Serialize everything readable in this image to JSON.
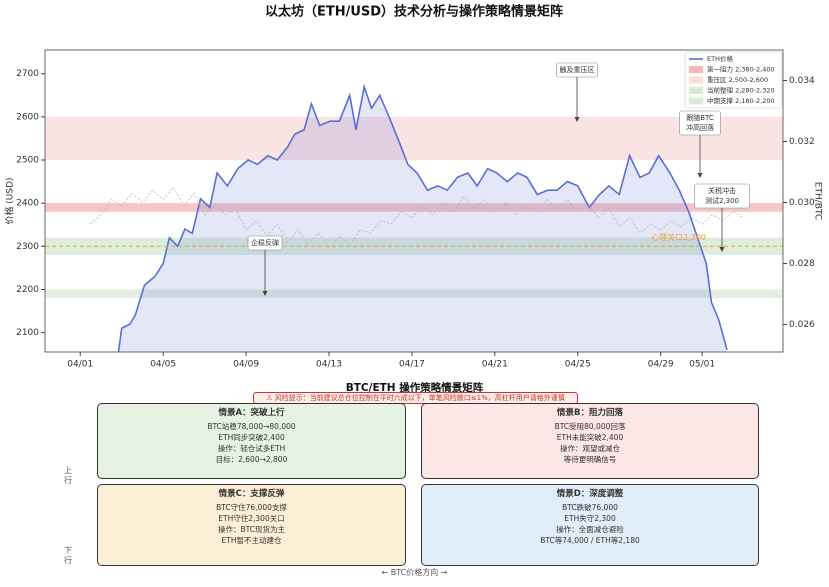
{
  "chart_data": {
    "type": "line",
    "title": "以太坊（ETH/USD）技术分析与操作策略情景矩阵",
    "y_label": "价格 (USD)",
    "y2_label": "ETH/BTC",
    "xlim": [
      -0.7,
      34.9
    ],
    "xticks": [
      {
        "value": 1,
        "label": "04/01"
      },
      {
        "value": 5,
        "label": "04/05"
      },
      {
        "value": 9,
        "label": "04/09"
      },
      {
        "value": 13,
        "label": "04/13"
      },
      {
        "value": 17,
        "label": "04/17"
      },
      {
        "value": 21,
        "label": "04/21"
      },
      {
        "value": 25,
        "label": "04/25"
      },
      {
        "value": 29,
        "label": "04/29"
      },
      {
        "value": 31,
        "label": "05/01"
      }
    ],
    "ylim": [
      2055,
      2755
    ],
    "yticks": [
      2100,
      2200,
      2300,
      2400,
      2500,
      2600,
      2700
    ],
    "y2lim": [
      0.0251,
      0.035
    ],
    "y2ticks": [
      0.026,
      0.028,
      {
        "value": 0.03,
        "label": "0.030"
      },
      0.032,
      0.034
    ],
    "series": [
      {
        "name": "ETH价格",
        "color": "#5a6fd3",
        "x": [
          2.83,
          3.0,
          3.4,
          3.65,
          4.1,
          4.6,
          5.0,
          5.3,
          5.7,
          6.05,
          6.4,
          6.8,
          7.25,
          7.6,
          8.1,
          8.6,
          9.1,
          9.55,
          10.05,
          10.5,
          11.0,
          11.35,
          11.8,
          12.15,
          12.55,
          13.05,
          13.5,
          14.0,
          14.3,
          14.7,
          15.05,
          15.45,
          15.9,
          16.4,
          16.8,
          17.25,
          17.75,
          18.25,
          18.7,
          19.2,
          19.7,
          20.15,
          20.65,
          21.1,
          21.6,
          22.1,
          22.55,
          23.05,
          23.55,
          24.0,
          24.5,
          25.0,
          25.55,
          26.05,
          26.5,
          27.0,
          27.5,
          28.0,
          28.45,
          28.9,
          29.45,
          29.9,
          30.35,
          30.85,
          31.2,
          31.45,
          31.8,
          32.2
        ],
        "values": [
          2050,
          2110,
          2120,
          2140,
          2210,
          2230,
          2260,
          2320,
          2300,
          2340,
          2330,
          2410,
          2390,
          2470,
          2440,
          2480,
          2500,
          2490,
          2510,
          2500,
          2530,
          2560,
          2570,
          2630,
          2580,
          2590,
          2590,
          2650,
          2570,
          2670,
          2620,
          2650,
          2600,
          2540,
          2490,
          2470,
          2430,
          2440,
          2430,
          2460,
          2470,
          2440,
          2480,
          2470,
          2450,
          2470,
          2460,
          2420,
          2430,
          2430,
          2450,
          2440,
          2390,
          2420,
          2440,
          2420,
          2510,
          2460,
          2470,
          2510,
          2470,
          2430,
          2380,
          2310,
          2260,
          2170,
          2130,
          2060
        ]
      },
      {
        "color": "#b5b5b5",
        "axis": "y2",
        "x": [
          1.5,
          2,
          2.5,
          3,
          3.5,
          4,
          4.5,
          5,
          5.5,
          6,
          6.5,
          7,
          7.5,
          8,
          8.5,
          9,
          9.5,
          10,
          10.5,
          11,
          11.5,
          12,
          12.5,
          13,
          13.5,
          14,
          14.5,
          15,
          15.5,
          16,
          16.5,
          17,
          17.5,
          18,
          18.5,
          19,
          19.5,
          20,
          20.5,
          21,
          21.5,
          22,
          22.5,
          23,
          23.5,
          24,
          24.5,
          25,
          25.5,
          26,
          26.5,
          27,
          27.5,
          28,
          28.5,
          29,
          29.5,
          30,
          30.5,
          31,
          31.5,
          32,
          32.5,
          33
        ],
        "values": [
          0.0293,
          0.0296,
          0.0301,
          0.0299,
          0.0303,
          0.03,
          0.0304,
          0.0301,
          0.0305,
          0.0299,
          0.0303,
          0.0296,
          0.0299,
          0.0296,
          0.0298,
          0.0291,
          0.0294,
          0.0289,
          0.0293,
          0.0287,
          0.0291,
          0.0286,
          0.029,
          0.0285,
          0.0289,
          0.0286,
          0.0291,
          0.029,
          0.0294,
          0.0293,
          0.0297,
          0.0295,
          0.0299,
          0.0296,
          0.03,
          0.0297,
          0.0302,
          0.0298,
          0.0301,
          0.0297,
          0.03,
          0.0296,
          0.0299,
          0.0297,
          0.0301,
          0.0298,
          0.0301,
          0.0297,
          0.0299,
          0.0295,
          0.0298,
          0.0292,
          0.0295,
          0.029,
          0.0293,
          0.0291,
          0.0294,
          0.0292,
          0.0295,
          0.0293,
          0.0296,
          0.0294,
          0.0297,
          0.0295
        ]
      }
    ],
    "bands": [
      {
        "name": "第一阻力 2,380-2,400",
        "range": [
          2380,
          2400
        ],
        "color": "#f5b7b9"
      },
      {
        "name": "重压区 2,500-2,600",
        "range": [
          2500,
          2600
        ],
        "color": "#f9dcdc"
      },
      {
        "name": "当前整理 2,280-2,320",
        "range": [
          2280,
          2320
        ],
        "color": "#d6ead2"
      },
      {
        "name": "中期支撑 2,180-2,200",
        "range": [
          2180,
          2200
        ],
        "color": "#dcebd8"
      }
    ],
    "reference_line": {
      "label": "心理关口2,300",
      "value": 2300,
      "color": "#f0a030"
    },
    "annotations": [
      {
        "text": [
          "触及重压区"
        ]
      },
      {
        "text": [
          "跟随BTC",
          "冲高回落"
        ]
      },
      {
        "text": [
          "关税冲击",
          "测试2,300"
        ]
      },
      {
        "text": [
          "企稳反弹"
        ]
      }
    ],
    "legend": "upper right"
  },
  "matrix": {
    "title": "BTC/ETH 操作策略情景矩阵",
    "warning": "⚠ 风险提示：当前建议总仓位控制在平时六成以下，单笔风险敞口≤1%，高杠杆用户请格外谨慎",
    "up_label": "上行",
    "down_label": "下行",
    "x_label": "← BTC价格方向 →",
    "scenarios": [
      {
        "title": "情景A：突破上行",
        "lines": [
          "BTC站稳78,000→80,000",
          "ETH同步突破2,400",
          "操作：轻仓试多ETH",
          "目标：2,600→2,800"
        ],
        "color": "#e6f2e2"
      },
      {
        "title": "情景B：阻力回落",
        "lines": [
          "BTC受阻80,000回落",
          "ETH未能突破2,400",
          "操作：观望或减仓",
          "等待更明确信号"
        ],
        "color": "#fde6e6"
      },
      {
        "title": "情景C：支撑反弹",
        "lines": [
          "BTC守住76,000支撑",
          "ETH守住2,300关口",
          "操作：BTC现货为主",
          "ETH暂不主动建仓"
        ],
        "color": "#fdeed6"
      },
      {
        "title": "情景D：深度调整",
        "lines": [
          "BTC跌破76,000",
          "ETH失守2,300",
          "操作：全面减仓避险",
          "BTC等74,000 / ETH等2,180"
        ],
        "color": "#e1edf8"
      }
    ]
  }
}
